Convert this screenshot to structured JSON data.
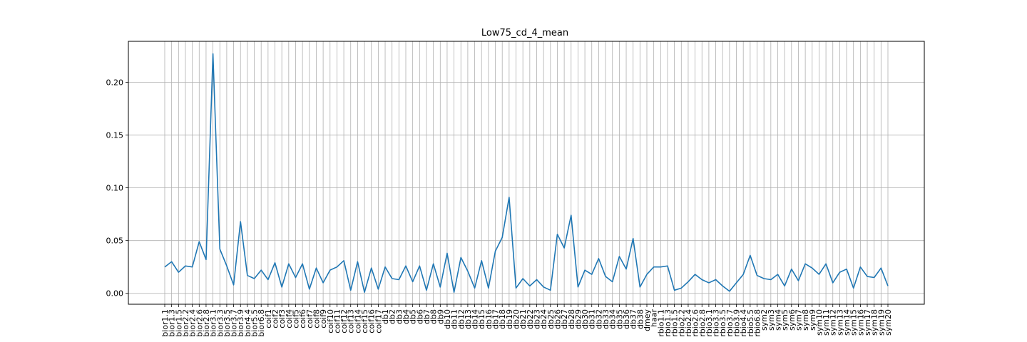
{
  "chart_data": {
    "type": "line",
    "title": "Low75_cd_4_mean",
    "xlabel": "",
    "ylabel": "",
    "ylim": [
      -0.0103,
      0.2388
    ],
    "yticks": [
      "0.00",
      "0.05",
      "0.10",
      "0.15",
      "0.20"
    ],
    "grid": true,
    "line_color": "#1f77b4",
    "categories": [
      "bior1.1",
      "bior1.3",
      "bior1.5",
      "bior2.2",
      "bior2.4",
      "bior2.6",
      "bior2.8",
      "bior3.1",
      "bior3.3",
      "bior3.5",
      "bior3.7",
      "bior3.9",
      "bior4.4",
      "bior5.5",
      "bior6.8",
      "coif1",
      "coif2",
      "coif3",
      "coif4",
      "coif5",
      "coif6",
      "coif7",
      "coif8",
      "coif9",
      "coif10",
      "coif11",
      "coif12",
      "coif13",
      "coif14",
      "coif15",
      "coif16",
      "coif17",
      "db1",
      "db2",
      "db3",
      "db4",
      "db5",
      "db6",
      "db7",
      "db8",
      "db9",
      "db10",
      "db11",
      "db12",
      "db13",
      "db14",
      "db15",
      "db16",
      "db17",
      "db18",
      "db19",
      "db20",
      "db21",
      "db22",
      "db23",
      "db24",
      "db25",
      "db26",
      "db27",
      "db28",
      "db29",
      "db30",
      "db31",
      "db32",
      "db33",
      "db34",
      "db35",
      "db36",
      "db37",
      "db38",
      "dmey",
      "haar",
      "rbio1.1",
      "rbio1.3",
      "rbio1.5",
      "rbio2.2",
      "rbio2.4",
      "rbio2.6",
      "rbio2.8",
      "rbio3.1",
      "rbio3.3",
      "rbio3.5",
      "rbio3.7",
      "rbio3.9",
      "rbio4.4",
      "rbio5.5",
      "rbio6.8",
      "sym2",
      "sym3",
      "sym4",
      "sym5",
      "sym6",
      "sym7",
      "sym8",
      "sym9",
      "sym10",
      "sym11",
      "sym12",
      "sym13",
      "sym14",
      "sym15",
      "sym16",
      "sym17",
      "sym18",
      "sym19",
      "sym20"
    ],
    "series": [
      {
        "values": [
          0.025,
          0.03,
          0.02,
          0.026,
          0.025,
          0.049,
          0.032,
          0.227,
          0.042,
          0.026,
          0.008,
          0.068,
          0.017,
          0.014,
          0.022,
          0.013,
          0.029,
          0.006,
          0.028,
          0.015,
          0.028,
          0.004,
          0.024,
          0.01,
          0.022,
          0.025,
          0.031,
          0.003,
          0.03,
          0.001,
          0.024,
          0.004,
          0.025,
          0.014,
          0.013,
          0.026,
          0.011,
          0.026,
          0.003,
          0.028,
          0.006,
          0.038,
          0.001,
          0.034,
          0.021,
          0.005,
          0.031,
          0.005,
          0.04,
          0.053,
          0.091,
          0.005,
          0.014,
          0.007,
          0.013,
          0.006,
          0.003,
          0.056,
          0.043,
          0.074,
          0.006,
          0.022,
          0.018,
          0.033,
          0.016,
          0.011,
          0.035,
          0.023,
          0.052,
          0.006,
          0.018,
          0.025,
          0.025,
          0.026,
          0.003,
          0.005,
          0.011,
          0.018,
          0.013,
          0.01,
          0.013,
          0.007,
          0.002,
          0.01,
          0.018,
          0.036,
          0.017,
          0.014,
          0.013,
          0.018,
          0.007,
          0.023,
          0.012,
          0.028,
          0.024,
          0.018,
          0.028,
          0.01,
          0.02,
          0.023,
          0.005,
          0.025,
          0.016,
          0.015,
          0.024,
          0.007
        ]
      }
    ]
  }
}
